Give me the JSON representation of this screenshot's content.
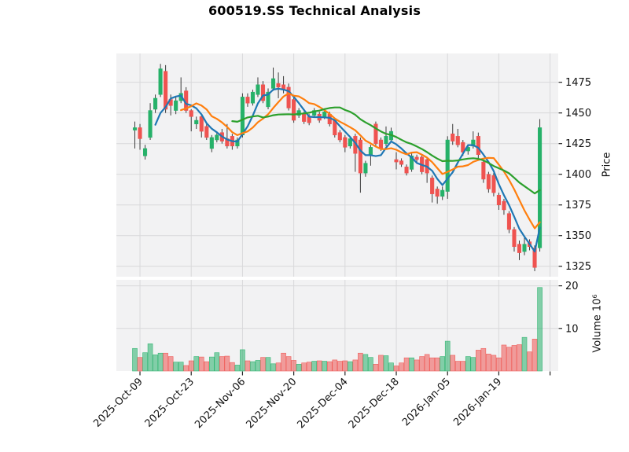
{
  "title": "600519.SS Technical Analysis",
  "price_axis": {
    "label": "Price",
    "ticks": [
      1325,
      1350,
      1375,
      1400,
      1425,
      1450,
      1475
    ]
  },
  "volume_axis": {
    "label": "Volume  10⁶",
    "ticks": [
      10,
      20
    ],
    "unit_exponent": 6
  },
  "x_axis": {
    "tick_labels": [
      "2025-Oct-09",
      "2025-Oct-23",
      "2025-Nov-06",
      "2025-Nov-20",
      "2025-Dec-04",
      "2025-Dec-18",
      "2026-Jan-05",
      "2026-Jan-19"
    ],
    "tick_indices": [
      1,
      11,
      21,
      31,
      41,
      51,
      61,
      71
    ],
    "edge_tick_index": 81
  },
  "colors": {
    "up": "#26b169",
    "down": "#ef5350",
    "wick": "#3c3c3c",
    "ma5": "#1f77b4",
    "ma10": "#ff7f0e",
    "ma20": "#2ca02c",
    "panel_bg": "#f2f2f3",
    "grid": "#d8d8da",
    "text": "#111111"
  },
  "chart_data": {
    "type": "candlestick",
    "symbol": "600519.SS",
    "title": "600519.SS Technical Analysis",
    "ylabel": "Price",
    "ylabel_volume": "Volume  10⁶",
    "price_ylim": [
      1316.5,
      1498.5
    ],
    "volume_ylim_millions": [
      0,
      21.4
    ],
    "grid": true,
    "legend_position": "none",
    "dates": [
      "2025-09-30",
      "2025-10-09",
      "2025-10-10",
      "2025-10-13",
      "2025-10-14",
      "2025-10-15",
      "2025-10-16",
      "2025-10-17",
      "2025-10-20",
      "2025-10-21",
      "2025-10-22",
      "2025-10-23",
      "2025-10-24",
      "2025-10-27",
      "2025-10-28",
      "2025-10-29",
      "2025-10-30",
      "2025-10-31",
      "2025-11-03",
      "2025-11-04",
      "2025-11-05",
      "2025-11-06",
      "2025-11-07",
      "2025-11-10",
      "2025-11-11",
      "2025-11-12",
      "2025-11-13",
      "2025-11-14",
      "2025-11-17",
      "2025-11-18",
      "2025-11-19",
      "2025-11-20",
      "2025-11-21",
      "2025-11-24",
      "2025-11-25",
      "2025-11-26",
      "2025-11-27",
      "2025-11-28",
      "2025-12-01",
      "2025-12-02",
      "2025-12-03",
      "2025-12-04",
      "2025-12-05",
      "2025-12-08",
      "2025-12-09",
      "2025-12-10",
      "2025-12-11",
      "2025-12-12",
      "2025-12-15",
      "2025-12-16",
      "2025-12-17",
      "2025-12-18",
      "2025-12-19",
      "2025-12-22",
      "2025-12-23",
      "2025-12-24",
      "2025-12-25",
      "2025-12-26",
      "2025-12-29",
      "2025-12-30",
      "2025-12-31",
      "2026-01-05",
      "2026-01-06",
      "2026-01-07",
      "2026-01-08",
      "2026-01-09",
      "2026-01-12",
      "2026-01-13",
      "2026-01-14",
      "2026-01-15",
      "2026-01-16",
      "2026-01-19",
      "2026-01-20",
      "2026-01-21",
      "2026-01-22",
      "2026-01-23",
      "2026-01-26",
      "2026-01-27",
      "2026-01-28",
      "2026-01-29"
    ],
    "open": [
      1436,
      1438,
      1415,
      1430,
      1453,
      1465,
      1484,
      1461,
      1452,
      1460,
      1468,
      1452,
      1441,
      1447,
      1439,
      1421,
      1428,
      1434,
      1429,
      1431,
      1423,
      1432,
      1463,
      1458,
      1465,
      1473,
      1455,
      1470,
      1474,
      1473,
      1471,
      1461,
      1448,
      1449,
      1447,
      1448,
      1449,
      1447,
      1449,
      1444,
      1434,
      1430,
      1423,
      1431,
      1428,
      1401,
      1415,
      1441,
      1428,
      1425,
      1428,
      1412,
      1411,
      1406,
      1404,
      1414,
      1414,
      1412,
      1397,
      1388,
      1382,
      1386,
      1433,
      1431,
      1426,
      1419,
      1423,
      1431,
      1410,
      1400,
      1399,
      1383,
      1378,
      1368,
      1355,
      1343,
      1337,
      1345,
      1340,
      1340
    ],
    "high": [
      1443,
      1441,
      1424,
      1458,
      1465,
      1490,
      1489,
      1465,
      1463,
      1479,
      1471,
      1453,
      1447,
      1449,
      1441,
      1432,
      1435,
      1437,
      1441,
      1433,
      1430,
      1466,
      1466,
      1469,
      1479,
      1476,
      1470,
      1487,
      1483,
      1480,
      1474,
      1463,
      1454,
      1451,
      1449,
      1454,
      1451,
      1453,
      1451,
      1446,
      1436,
      1432,
      1431,
      1433,
      1430,
      1411,
      1424,
      1443,
      1430,
      1439,
      1438,
      1418,
      1413,
      1408,
      1417,
      1416,
      1416,
      1414,
      1399,
      1390,
      1390,
      1431,
      1441,
      1437,
      1428,
      1424,
      1435,
      1434,
      1412,
      1402,
      1401,
      1385,
      1380,
      1370,
      1357,
      1346,
      1350,
      1347,
      1342,
      1445
    ],
    "low": [
      1421,
      1420,
      1412,
      1428,
      1450,
      1463,
      1450,
      1448,
      1449,
      1458,
      1450,
      1435,
      1437,
      1430,
      1428,
      1418,
      1426,
      1425,
      1421,
      1420,
      1421,
      1430,
      1455,
      1456,
      1463,
      1458,
      1453,
      1468,
      1462,
      1466,
      1452,
      1442,
      1446,
      1441,
      1440,
      1446,
      1442,
      1445,
      1439,
      1430,
      1426,
      1418,
      1421,
      1402,
      1385,
      1398,
      1407,
      1423,
      1419,
      1423,
      1426,
      1404,
      1406,
      1399,
      1402,
      1409,
      1400,
      1393,
      1377,
      1376,
      1379,
      1380,
      1424,
      1422,
      1415,
      1416,
      1421,
      1413,
      1393,
      1385,
      1382,
      1371,
      1367,
      1352,
      1337,
      1330,
      1334,
      1338,
      1321,
      1337
    ],
    "close": [
      1438,
      1429,
      1421,
      1452,
      1462,
      1486,
      1453,
      1456,
      1460,
      1466,
      1452,
      1447,
      1444,
      1435,
      1430,
      1430,
      1432,
      1427,
      1423,
      1423,
      1428,
      1463,
      1458,
      1467,
      1473,
      1460,
      1467,
      1478,
      1471,
      1469,
      1454,
      1444,
      1452,
      1443,
      1442,
      1452,
      1444,
      1451,
      1441,
      1432,
      1428,
      1422,
      1429,
      1417,
      1401,
      1409,
      1422,
      1425,
      1421,
      1431,
      1435,
      1410,
      1408,
      1401,
      1415,
      1412,
      1402,
      1401,
      1384,
      1382,
      1387,
      1428,
      1427,
      1424,
      1418,
      1422,
      1428,
      1416,
      1396,
      1388,
      1385,
      1375,
      1371,
      1355,
      1341,
      1336,
      1343,
      1341,
      1324,
      1438
    ],
    "volume_millions": [
      5.3,
      3.2,
      4.3,
      6.4,
      3.8,
      4.2,
      4.2,
      3.4,
      2.1,
      2.1,
      1.3,
      2.4,
      3.4,
      3.3,
      2.2,
      3.3,
      4.3,
      3.4,
      3.5,
      2.0,
      1.4,
      5.0,
      2.4,
      2.2,
      2.5,
      3.2,
      3.2,
      1.7,
      1.9,
      4.2,
      3.4,
      2.5,
      1.6,
      1.9,
      2.1,
      2.3,
      2.4,
      2.3,
      2.2,
      2.6,
      2.3,
      2.4,
      2.2,
      2.6,
      4.2,
      3.9,
      3.2,
      1.6,
      3.7,
      3.6,
      1.9,
      1.2,
      1.9,
      3.1,
      3.1,
      2.6,
      3.4,
      3.9,
      3.1,
      3.1,
      3.4,
      7.0,
      3.7,
      2.3,
      2.3,
      3.4,
      3.2,
      4.9,
      5.3,
      4.0,
      3.7,
      3.1,
      6.1,
      5.6,
      6.0,
      6.2,
      7.9,
      4.5,
      7.5,
      19.6
    ],
    "indicators": [
      {
        "name": "MA5",
        "window": 5,
        "color": "#1f77b4"
      },
      {
        "name": "MA10",
        "window": 10,
        "color": "#ff7f0e"
      },
      {
        "name": "MA20",
        "window": 20,
        "color": "#2ca02c"
      }
    ]
  }
}
